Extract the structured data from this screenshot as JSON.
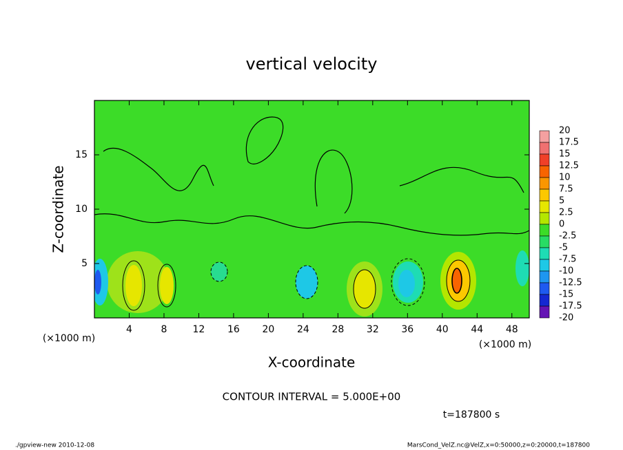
{
  "chart_data": {
    "type": "contour",
    "title": "vertical velocity",
    "xlabel": "X-coordinate",
    "ylabel": "Z-coordinate",
    "x_unit_left": "(×1000 m)",
    "x_unit_right": "(×1000 m)",
    "xlim": [
      0,
      50
    ],
    "xticks": [
      4,
      8,
      12,
      16,
      20,
      24,
      28,
      32,
      36,
      40,
      44,
      48
    ],
    "ylim": [
      0,
      20
    ],
    "yticks": [
      5,
      10,
      15
    ],
    "colorbar": {
      "levels": [
        20,
        17.5,
        15,
        12.5,
        10,
        7.5,
        5,
        2.5,
        0,
        -2.5,
        -5,
        -7.5,
        -10,
        -12.5,
        -15,
        -17.5,
        -20
      ],
      "colors": [
        "#f4a0a0",
        "#f07070",
        "#f04028",
        "#f86400",
        "#fa9600",
        "#fcc800",
        "#e6e600",
        "#b4e600",
        "#3cdc28",
        "#28dc64",
        "#1edcb4",
        "#1ec8e6",
        "#1e96f0",
        "#1e5af0",
        "#1428d2",
        "#6414b4"
      ]
    },
    "contour_label": "CONTOUR INTERVAL = 5.000E+00",
    "time_label": "t=187800 s",
    "footer_left": "./gpview-new  2010-12-08",
    "footer_right": "MarsCond_VelZ.nc@VelZ,x=0:50000,z=0:20000,t=187800"
  }
}
